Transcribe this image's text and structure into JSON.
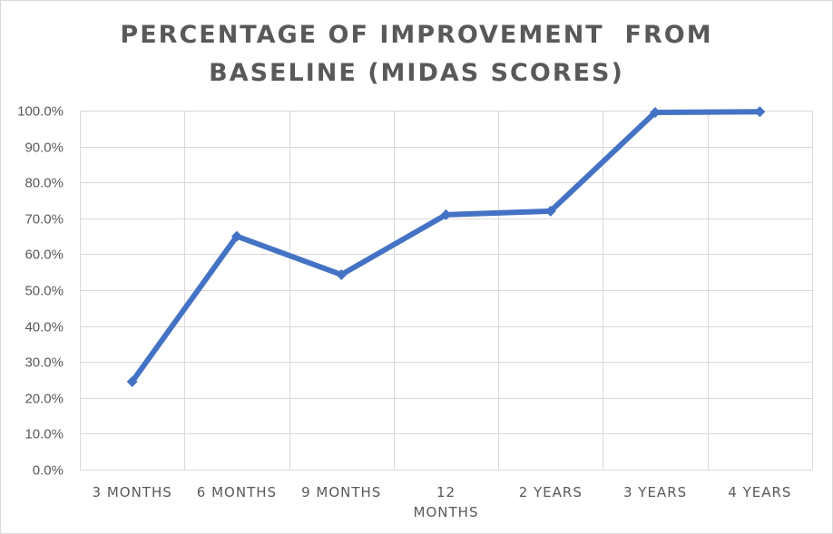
{
  "chart_data": {
    "type": "line",
    "title_lines": [
      "PERCENTAGE OF IMPROVEMENT  FROM",
      "BASELINE (MIDAS SCORES)"
    ],
    "categories": [
      [
        "3 MONTHS"
      ],
      [
        "6 MONTHS"
      ],
      [
        "9 MONTHS"
      ],
      [
        "12",
        "MONTHS"
      ],
      [
        "2 YEARS"
      ],
      [
        "3 YEARS"
      ],
      [
        "4 YEARS"
      ]
    ],
    "values": [
      24.5,
      65.0,
      54.3,
      71.0,
      72.0,
      99.5,
      99.7
    ],
    "ylim": [
      0,
      100
    ],
    "yticks": [
      "0.0%",
      "10.0%",
      "20.0%",
      "30.0%",
      "40.0%",
      "50.0%",
      "60.0%",
      "70.0%",
      "80.0%",
      "90.0%",
      "100.0%"
    ],
    "line_color": "#4472c4",
    "grid": true
  }
}
